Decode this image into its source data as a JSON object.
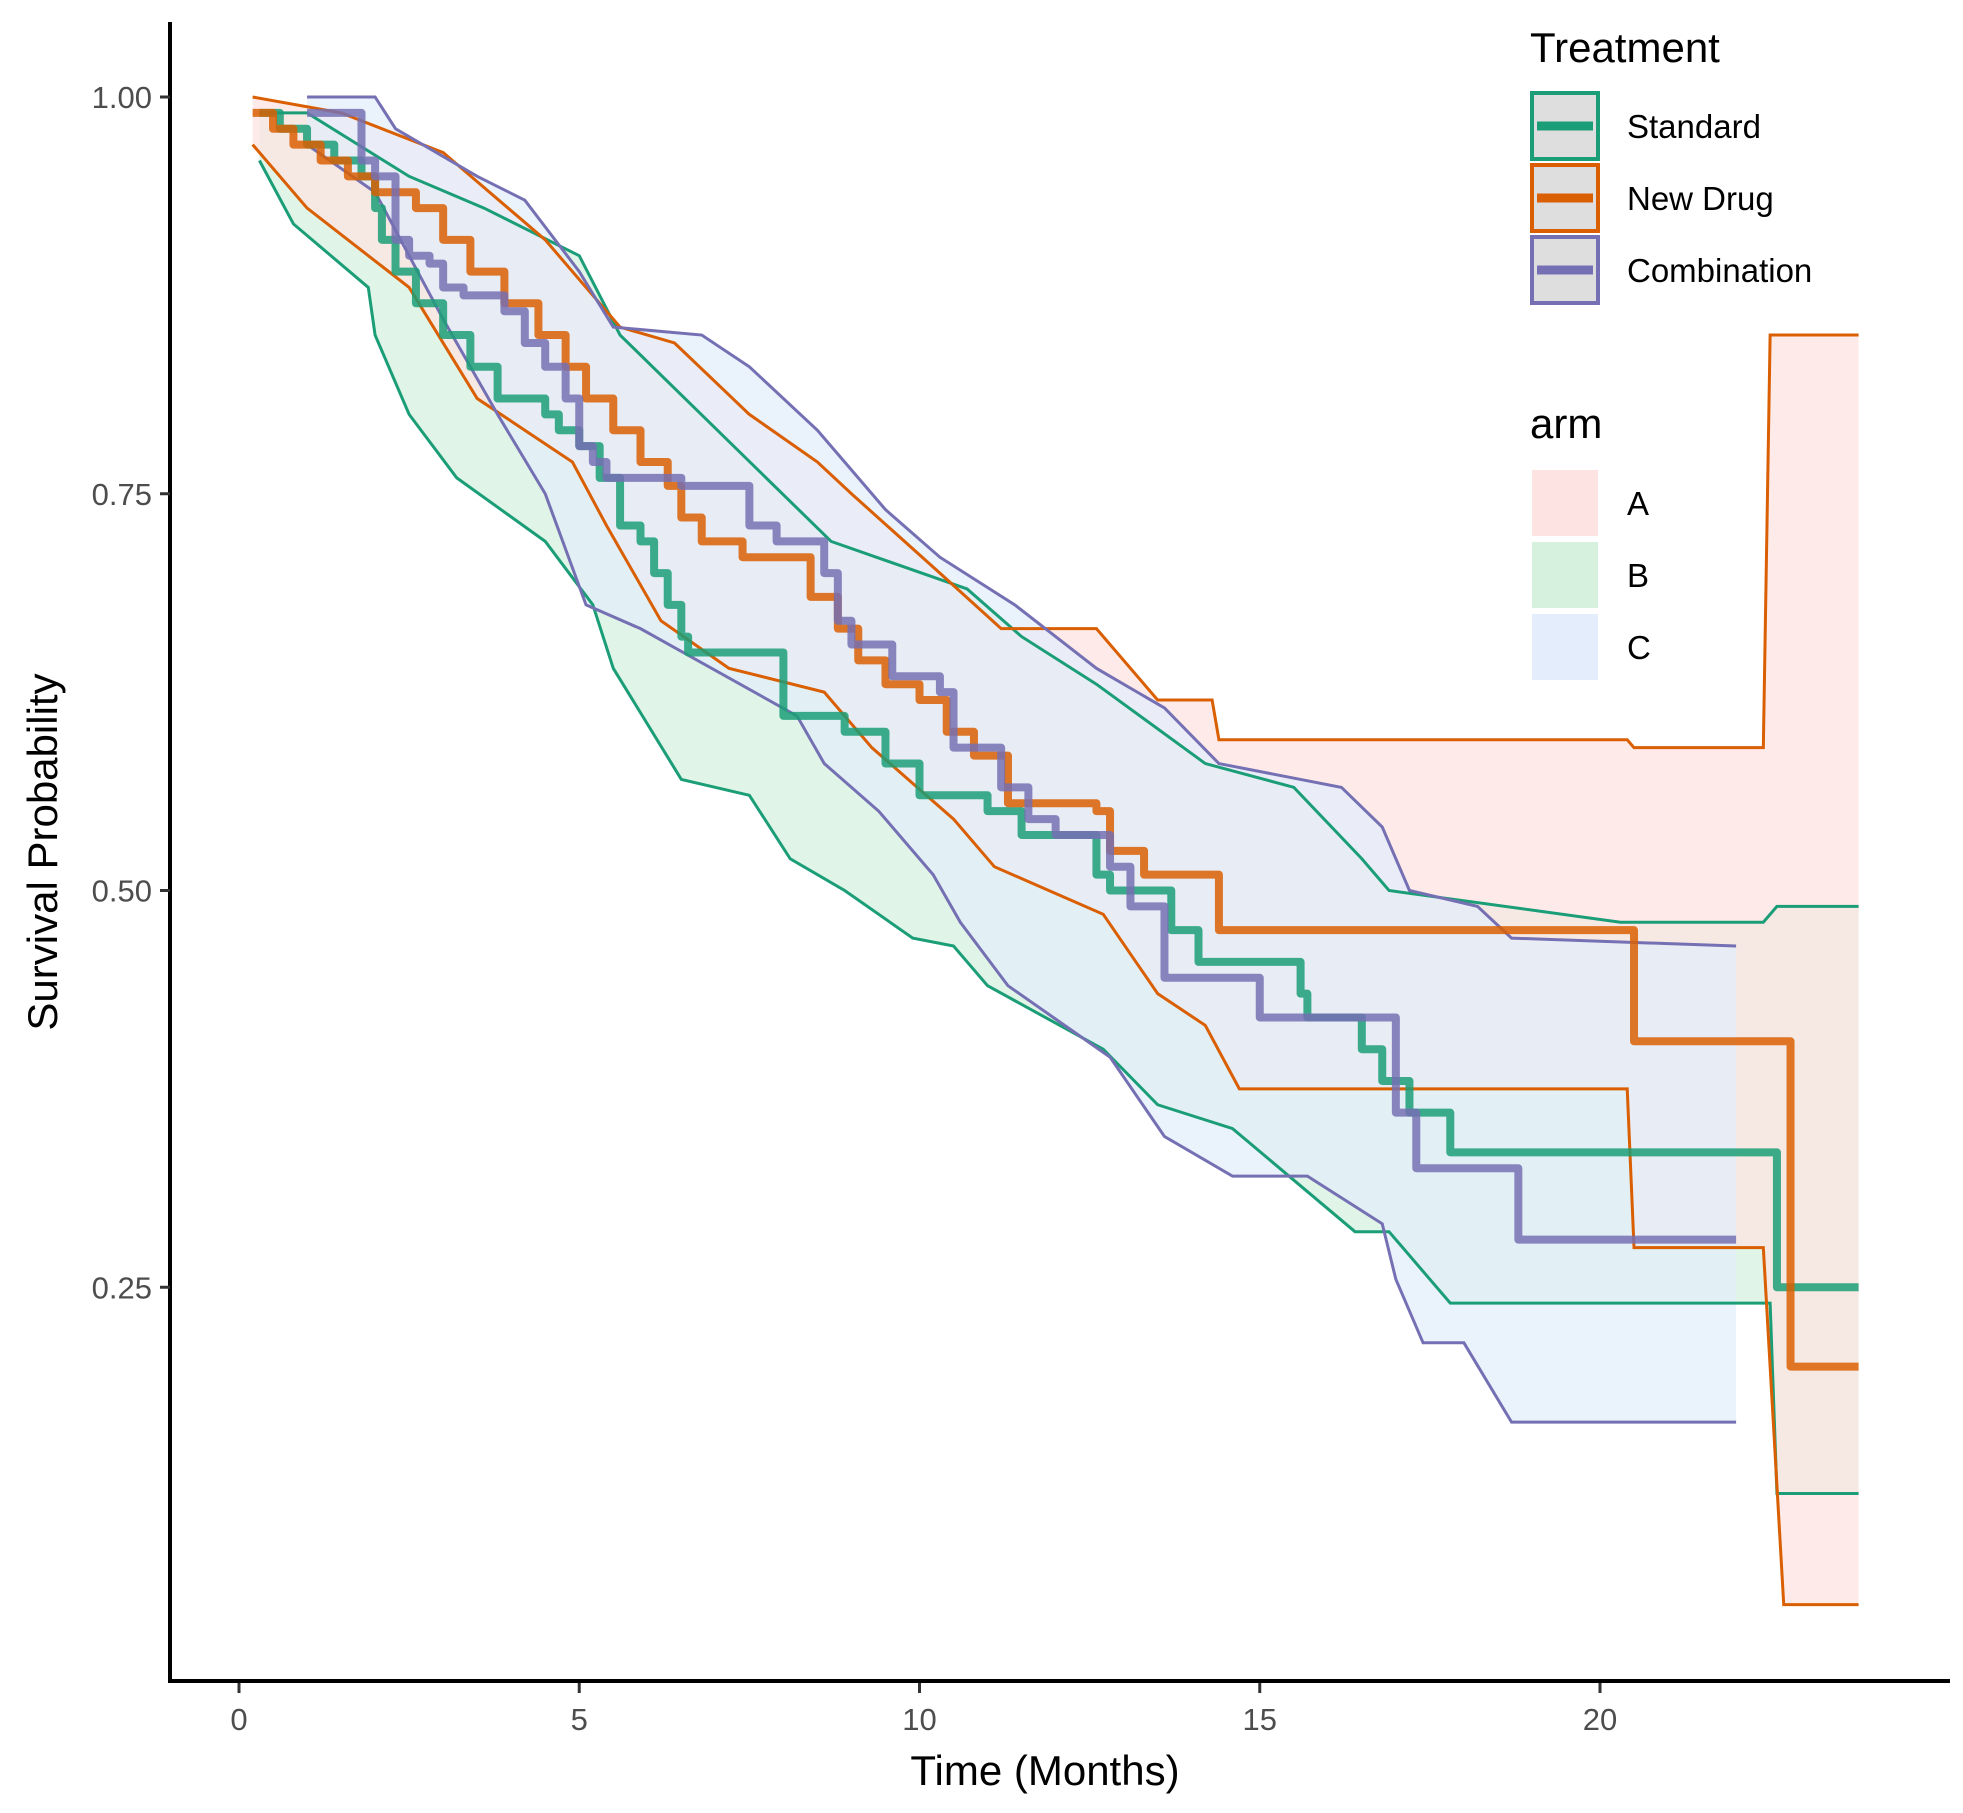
{
  "chart_data": {
    "type": "line",
    "subtype": "kaplan-meier step curves with confidence bands",
    "title": "",
    "xlabel": "Time (Months)",
    "ylabel": "Survival Probability",
    "xlim": [
      -1,
      25
    ],
    "ylim": [
      0.0,
      1.05
    ],
    "x_ticks": [
      0,
      5,
      10,
      15,
      20
    ],
    "x_tick_labels": [
      "0",
      "5",
      "10",
      "15",
      "20"
    ],
    "y_ticks": [
      0.25,
      0.5,
      0.75,
      1.0
    ],
    "y_tick_labels": [
      "0.25",
      "0.50",
      "0.75",
      "1.00"
    ],
    "grid": false,
    "legends": [
      {
        "title": "Treatment",
        "placement": "top-right",
        "entries": [
          {
            "label": "Standard",
            "color": "#1b9e77"
          },
          {
            "label": "New Drug",
            "color": "#d95f02"
          },
          {
            "label": "Combination",
            "color": "#7570b3"
          }
        ]
      },
      {
        "title": "arm",
        "placement": "right",
        "entries": [
          {
            "label": "A",
            "color": "#fde4e2"
          },
          {
            "label": "B",
            "color": "#d6f2df"
          },
          {
            "label": "C",
            "color": "#e3edfb"
          }
        ]
      }
    ],
    "series": [
      {
        "name": "Standard",
        "arm": "B",
        "color": "#1b9e77",
        "fill": "#d6f2df",
        "survival": [
          [
            0.3,
            0.99
          ],
          [
            0.6,
            0.98
          ],
          [
            1.0,
            0.97
          ],
          [
            1.4,
            0.96
          ],
          [
            1.8,
            0.95
          ],
          [
            2.0,
            0.93
          ],
          [
            2.1,
            0.91
          ],
          [
            2.3,
            0.89
          ],
          [
            2.6,
            0.87
          ],
          [
            3.0,
            0.85
          ],
          [
            3.4,
            0.83
          ],
          [
            3.8,
            0.81
          ],
          [
            4.5,
            0.8
          ],
          [
            4.7,
            0.79
          ],
          [
            5.0,
            0.78
          ],
          [
            5.3,
            0.76
          ],
          [
            5.6,
            0.73
          ],
          [
            5.9,
            0.72
          ],
          [
            6.1,
            0.7
          ],
          [
            6.3,
            0.68
          ],
          [
            6.5,
            0.66
          ],
          [
            6.6,
            0.65
          ],
          [
            8.0,
            0.61
          ],
          [
            8.9,
            0.6
          ],
          [
            9.5,
            0.58
          ],
          [
            10.0,
            0.56
          ],
          [
            11.0,
            0.55
          ],
          [
            11.5,
            0.535
          ],
          [
            12.6,
            0.51
          ],
          [
            12.8,
            0.5
          ],
          [
            13.7,
            0.475
          ],
          [
            14.1,
            0.455
          ],
          [
            15.6,
            0.435
          ],
          [
            15.7,
            0.42
          ],
          [
            16.5,
            0.4
          ],
          [
            16.8,
            0.38
          ],
          [
            17.2,
            0.36
          ],
          [
            17.8,
            0.335
          ],
          [
            22.5,
            0.335
          ],
          [
            22.6,
            0.25
          ],
          [
            23.8,
            0.25
          ]
        ],
        "ci_upper": [
          [
            0.3,
            0.99
          ],
          [
            1.0,
            0.99
          ],
          [
            2.5,
            0.95
          ],
          [
            3.6,
            0.93
          ],
          [
            5.0,
            0.9
          ],
          [
            5.6,
            0.85
          ],
          [
            8.7,
            0.72
          ],
          [
            10.7,
            0.69
          ],
          [
            11.5,
            0.66
          ],
          [
            12.6,
            0.63
          ],
          [
            14.2,
            0.58
          ],
          [
            15.5,
            0.565
          ],
          [
            16.5,
            0.52
          ],
          [
            16.9,
            0.5
          ],
          [
            20.3,
            0.48
          ],
          [
            22.4,
            0.48
          ],
          [
            22.6,
            0.49
          ],
          [
            23.8,
            0.49
          ]
        ],
        "ci_lower": [
          [
            0.3,
            0.96
          ],
          [
            0.8,
            0.92
          ],
          [
            1.9,
            0.88
          ],
          [
            2.0,
            0.85
          ],
          [
            2.5,
            0.8
          ],
          [
            3.2,
            0.76
          ],
          [
            4.5,
            0.72
          ],
          [
            5.2,
            0.68
          ],
          [
            5.5,
            0.64
          ],
          [
            6.5,
            0.57
          ],
          [
            7.5,
            0.56
          ],
          [
            8.1,
            0.52
          ],
          [
            8.9,
            0.5
          ],
          [
            9.9,
            0.47
          ],
          [
            10.5,
            0.465
          ],
          [
            11.0,
            0.44
          ],
          [
            12.7,
            0.4
          ],
          [
            13.5,
            0.365
          ],
          [
            14.6,
            0.35
          ],
          [
            16.4,
            0.285
          ],
          [
            16.9,
            0.285
          ],
          [
            17.8,
            0.24
          ],
          [
            22.5,
            0.24
          ],
          [
            22.6,
            0.12
          ],
          [
            23.8,
            0.12
          ]
        ]
      },
      {
        "name": "New Drug",
        "arm": "A",
        "color": "#d95f02",
        "fill": "#fde4e2",
        "survival": [
          [
            0.2,
            0.99
          ],
          [
            0.5,
            0.98
          ],
          [
            0.8,
            0.97
          ],
          [
            1.2,
            0.96
          ],
          [
            1.6,
            0.95
          ],
          [
            2.0,
            0.94
          ],
          [
            2.6,
            0.93
          ],
          [
            3.0,
            0.91
          ],
          [
            3.4,
            0.89
          ],
          [
            3.9,
            0.87
          ],
          [
            4.4,
            0.85
          ],
          [
            4.8,
            0.83
          ],
          [
            5.1,
            0.81
          ],
          [
            5.5,
            0.79
          ],
          [
            5.9,
            0.77
          ],
          [
            6.3,
            0.755
          ],
          [
            6.5,
            0.735
          ],
          [
            6.8,
            0.72
          ],
          [
            7.4,
            0.71
          ],
          [
            8.4,
            0.685
          ],
          [
            8.8,
            0.665
          ],
          [
            9.1,
            0.645
          ],
          [
            9.5,
            0.63
          ],
          [
            10.0,
            0.62
          ],
          [
            10.4,
            0.6
          ],
          [
            10.8,
            0.585
          ],
          [
            11.3,
            0.555
          ],
          [
            12.6,
            0.55
          ],
          [
            12.8,
            0.525
          ],
          [
            13.3,
            0.51
          ],
          [
            14.4,
            0.475
          ],
          [
            20.4,
            0.475
          ],
          [
            20.5,
            0.405
          ],
          [
            22.7,
            0.405
          ],
          [
            22.8,
            0.2
          ],
          [
            23.8,
            0.2
          ]
        ],
        "ci_upper": [
          [
            0.2,
            1.0
          ],
          [
            1.5,
            0.99
          ],
          [
            3.0,
            0.965
          ],
          [
            4.5,
            0.91
          ],
          [
            5.6,
            0.855
          ],
          [
            6.4,
            0.845
          ],
          [
            7.5,
            0.8
          ],
          [
            8.5,
            0.77
          ],
          [
            9.0,
            0.75
          ],
          [
            10.3,
            0.7
          ],
          [
            11.2,
            0.665
          ],
          [
            12.6,
            0.665
          ],
          [
            13.5,
            0.62
          ],
          [
            14.3,
            0.62
          ],
          [
            14.4,
            0.595
          ],
          [
            20.4,
            0.595
          ],
          [
            20.5,
            0.59
          ],
          [
            22.4,
            0.59
          ],
          [
            22.5,
            0.85
          ],
          [
            23.8,
            0.85
          ]
        ],
        "ci_lower": [
          [
            0.2,
            0.97
          ],
          [
            1.0,
            0.93
          ],
          [
            2.5,
            0.88
          ],
          [
            3.5,
            0.81
          ],
          [
            4.9,
            0.77
          ],
          [
            5.4,
            0.73
          ],
          [
            6.2,
            0.67
          ],
          [
            7.2,
            0.64
          ],
          [
            8.6,
            0.625
          ],
          [
            9.3,
            0.59
          ],
          [
            10.5,
            0.545
          ],
          [
            11.1,
            0.515
          ],
          [
            12.7,
            0.485
          ],
          [
            13.5,
            0.435
          ],
          [
            14.2,
            0.415
          ],
          [
            14.7,
            0.375
          ],
          [
            20.4,
            0.375
          ],
          [
            20.5,
            0.275
          ],
          [
            22.4,
            0.275
          ],
          [
            22.7,
            0.05
          ],
          [
            23.8,
            0.05
          ]
        ]
      },
      {
        "name": "Combination",
        "arm": "C",
        "color": "#7570b3",
        "fill": "#e3edfb",
        "survival": [
          [
            1.0,
            0.99
          ],
          [
            1.7,
            0.99
          ],
          [
            1.8,
            0.96
          ],
          [
            2.0,
            0.95
          ],
          [
            2.3,
            0.91
          ],
          [
            2.5,
            0.9
          ],
          [
            2.8,
            0.895
          ],
          [
            3.0,
            0.88
          ],
          [
            3.3,
            0.875
          ],
          [
            3.9,
            0.865
          ],
          [
            4.2,
            0.845
          ],
          [
            4.5,
            0.83
          ],
          [
            4.8,
            0.81
          ],
          [
            5.0,
            0.78
          ],
          [
            5.2,
            0.77
          ],
          [
            5.4,
            0.76
          ],
          [
            6.5,
            0.755
          ],
          [
            7.5,
            0.73
          ],
          [
            7.9,
            0.72
          ],
          [
            8.6,
            0.7
          ],
          [
            8.8,
            0.67
          ],
          [
            9.0,
            0.655
          ],
          [
            9.6,
            0.635
          ],
          [
            10.3,
            0.625
          ],
          [
            10.5,
            0.59
          ],
          [
            11.2,
            0.565
          ],
          [
            11.6,
            0.545
          ],
          [
            12.0,
            0.535
          ],
          [
            12.8,
            0.515
          ],
          [
            13.1,
            0.49
          ],
          [
            13.6,
            0.445
          ],
          [
            15.0,
            0.42
          ],
          [
            16.9,
            0.42
          ],
          [
            17.0,
            0.36
          ],
          [
            17.3,
            0.325
          ],
          [
            18.7,
            0.325
          ],
          [
            18.8,
            0.28
          ],
          [
            22.0,
            0.28
          ]
        ],
        "ci_upper": [
          [
            1.0,
            1.0
          ],
          [
            2.0,
            1.0
          ],
          [
            2.3,
            0.98
          ],
          [
            3.5,
            0.95
          ],
          [
            4.2,
            0.935
          ],
          [
            5.0,
            0.89
          ],
          [
            5.5,
            0.855
          ],
          [
            6.8,
            0.85
          ],
          [
            7.5,
            0.83
          ],
          [
            8.5,
            0.79
          ],
          [
            8.9,
            0.77
          ],
          [
            9.5,
            0.74
          ],
          [
            10.3,
            0.71
          ],
          [
            11.4,
            0.68
          ],
          [
            12.6,
            0.64
          ],
          [
            13.6,
            0.615
          ],
          [
            14.4,
            0.58
          ],
          [
            15.6,
            0.57
          ],
          [
            16.2,
            0.565
          ],
          [
            16.8,
            0.54
          ],
          [
            17.2,
            0.5
          ],
          [
            18.2,
            0.49
          ],
          [
            18.7,
            0.47
          ],
          [
            22.0,
            0.465
          ]
        ],
        "ci_lower": [
          [
            1.0,
            0.97
          ],
          [
            2.0,
            0.94
          ],
          [
            3.0,
            0.86
          ],
          [
            3.8,
            0.8
          ],
          [
            4.5,
            0.75
          ],
          [
            5.1,
            0.68
          ],
          [
            5.9,
            0.665
          ],
          [
            8.2,
            0.61
          ],
          [
            8.6,
            0.58
          ],
          [
            9.4,
            0.55
          ],
          [
            10.2,
            0.51
          ],
          [
            10.6,
            0.48
          ],
          [
            11.3,
            0.44
          ],
          [
            12.8,
            0.395
          ],
          [
            13.6,
            0.345
          ],
          [
            14.6,
            0.32
          ],
          [
            15.7,
            0.32
          ],
          [
            16.8,
            0.29
          ],
          [
            17.0,
            0.255
          ],
          [
            17.4,
            0.215
          ],
          [
            18.0,
            0.215
          ],
          [
            18.7,
            0.165
          ],
          [
            22.0,
            0.165
          ]
        ]
      }
    ]
  }
}
